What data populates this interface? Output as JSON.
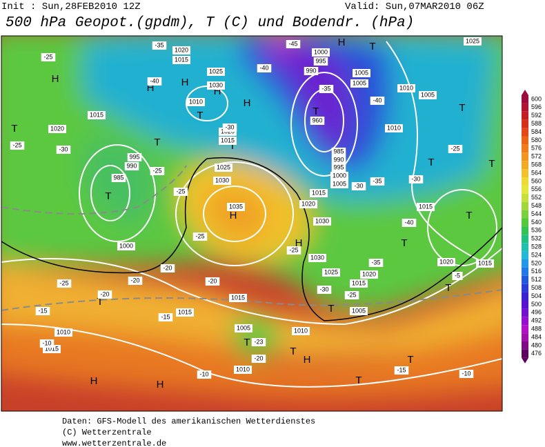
{
  "header": {
    "init": "Init : Sun,28FEB2010 12Z",
    "valid": "Valid: Sun,07MAR2010 06Z",
    "title": "500 hPa Geopot.(gpdm), T (C) und Bodendr. (hPa)"
  },
  "colorbar": {
    "labels": [
      "600",
      "596",
      "592",
      "588",
      "584",
      "580",
      "576",
      "572",
      "568",
      "564",
      "560",
      "556",
      "552",
      "548",
      "544",
      "540",
      "536",
      "532",
      "528",
      "524",
      "520",
      "516",
      "512",
      "508",
      "504",
      "500",
      "496",
      "492",
      "488",
      "484",
      "480",
      "476"
    ],
    "colors": [
      "#9c0c3c",
      "#b0142e",
      "#c41e24",
      "#d6301c",
      "#e44818",
      "#ec6418",
      "#f07c1a",
      "#f29420",
      "#f2aa26",
      "#f2c22e",
      "#f0d836",
      "#e6e63c",
      "#c6e03e",
      "#a2d83e",
      "#7cd03e",
      "#56c83e",
      "#34c252",
      "#22c080",
      "#20c0ae",
      "#22b8d6",
      "#2298e8",
      "#2278e6",
      "#2258de",
      "#2a3cd6",
      "#3a22d0",
      "#5614d0",
      "#7410d0",
      "#9410d0",
      "#b410c8",
      "#a010aa",
      "#7e0c82",
      "#5c005e"
    ]
  },
  "map": {
    "labels": [
      "H",
      "H",
      "H",
      "H",
      "H",
      "H",
      "H",
      "H",
      "H",
      "H",
      "H",
      "T",
      "T",
      "T",
      "T",
      "T",
      "T",
      "T",
      "T",
      "T",
      "T",
      "T",
      "T",
      "T",
      "T",
      "T",
      "T",
      "T",
      "T",
      "T",
      "1020",
      "1015",
      "1025",
      "1030",
      "1010",
      "1000",
      "995",
      "990",
      "1005",
      "1005",
      "1010",
      "1005",
      "1025",
      "1015",
      "1020",
      "1020",
      "1015",
      "995",
      "990",
      "985",
      "960",
      "985",
      "990",
      "995",
      "1000",
      "1005",
      "1010",
      "1015",
      "1020",
      "1030",
      "1015",
      "1020",
      "1015",
      "1000",
      "1030",
      "1025",
      "1015",
      "1020",
      "1005",
      "1015",
      "1015",
      "1010",
      "1015",
      "1010",
      "1005",
      "1010",
      "1035",
      "1030",
      "1025",
      "-25",
      "-35",
      "-40",
      "-45",
      "-40",
      "-35",
      "-40",
      "-30",
      "-25",
      "-30",
      "-25",
      "-25",
      "-25",
      "-30",
      "-35",
      "-30",
      "-40",
      "-25",
      "-20",
      "-25",
      "-20",
      "-20",
      "-25",
      "-35",
      "-30",
      "-25",
      "-15",
      "-15",
      "-10",
      "-20",
      "-23",
      "-10",
      "-15",
      "-10",
      "-5",
      "-20"
    ]
  },
  "footer": {
    "line1": "Daten: GFS-Modell des amerikanischen Wetterdienstes",
    "line2": "(C) Wetterzentrale",
    "line3": "www.wetterzentrale.de"
  }
}
